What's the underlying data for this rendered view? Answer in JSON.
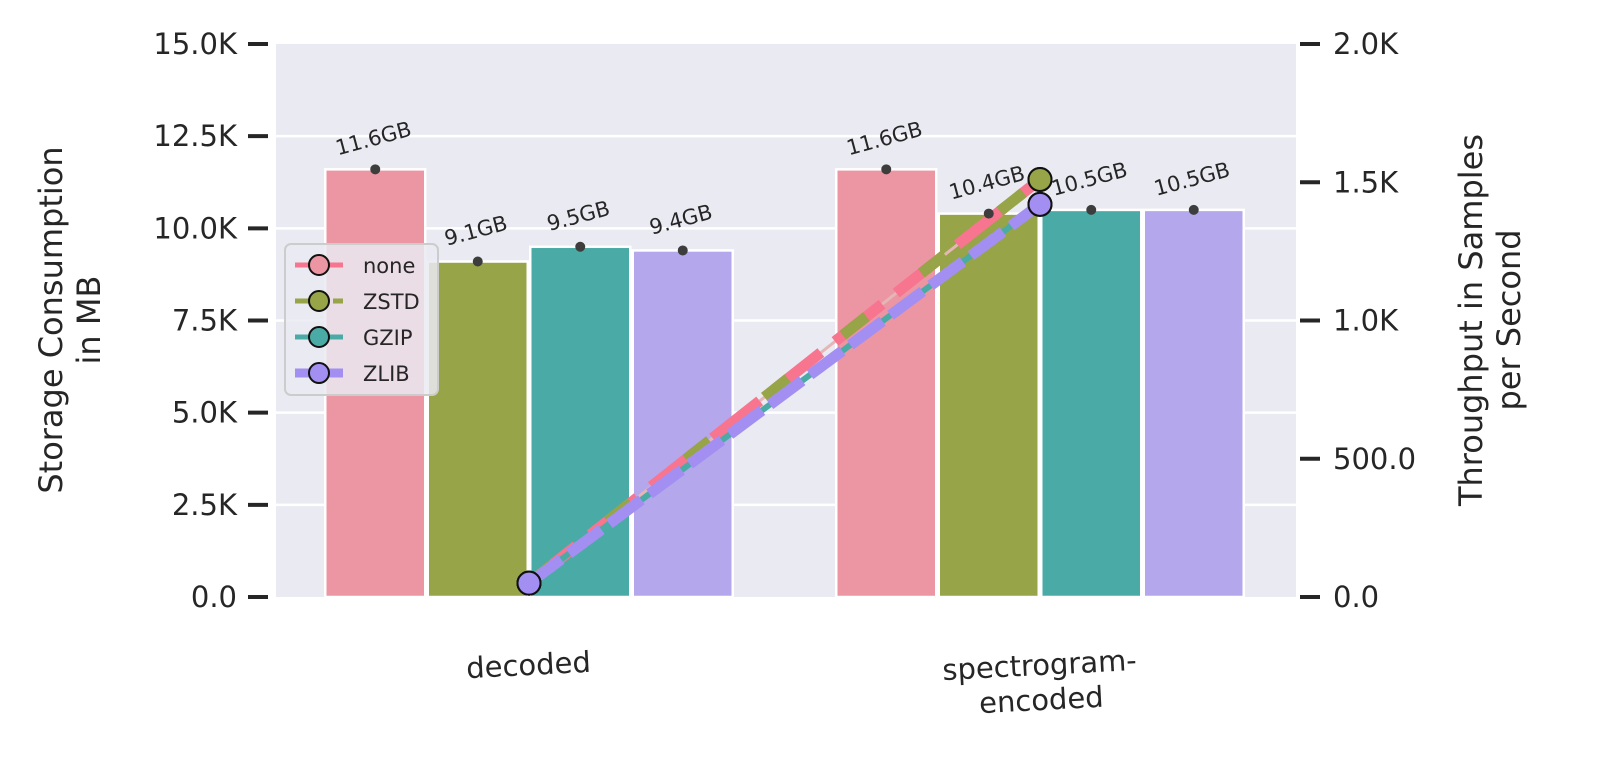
{
  "chart_data": {
    "type": "bar",
    "categories": [
      "decoded",
      "spectrogram-\nencoded"
    ],
    "y_left": {
      "label": "Storage Consumption\nin MB",
      "lim": [
        0,
        15000
      ],
      "ticks": [
        0,
        2500,
        5000,
        7500,
        10000,
        12500,
        15000
      ],
      "tick_labels": [
        "0.0",
        "2.5K",
        "5.0K",
        "7.5K",
        "10.0K",
        "12.5K",
        "15.0K"
      ]
    },
    "y_right": {
      "label": "Throughput in Samples\nper Second",
      "lim": [
        0,
        2000
      ],
      "ticks": [
        0,
        500,
        1000,
        1500,
        2000
      ],
      "tick_labels": [
        "0.0",
        "500.0",
        "1.0K",
        "1.5K",
        "2.0K"
      ]
    },
    "grid": true,
    "legend_position": "center-left",
    "bar_series": [
      {
        "name": "none",
        "color": "#eb96a2",
        "values": [
          11600,
          11600
        ],
        "labels": [
          "11.6GB",
          "11.6GB"
        ]
      },
      {
        "name": "ZSTD",
        "color": "#97a447",
        "values": [
          9100,
          10400
        ],
        "labels": [
          "9.1GB",
          "10.4GB"
        ]
      },
      {
        "name": "GZIP",
        "color": "#4aaba6",
        "values": [
          9500,
          10500
        ],
        "labels": [
          "9.5GB",
          "10.5GB"
        ]
      },
      {
        "name": "ZLIB",
        "color": "#b4a7ec",
        "values": [
          9400,
          10500
        ],
        "labels": [
          "9.4GB",
          "10.5GB"
        ]
      }
    ],
    "line_series": [
      {
        "name": "none",
        "color": "#f7758f",
        "values": [
          50,
          1510
        ]
      },
      {
        "name": "ZSTD",
        "color": "#97a447",
        "values": [
          50,
          1510
        ]
      },
      {
        "name": "GZIP",
        "color": "#4aaba6",
        "values": [
          50,
          1420
        ]
      },
      {
        "name": "ZLIB",
        "color": "#a38ff2",
        "values": [
          50,
          1420
        ]
      }
    ]
  }
}
